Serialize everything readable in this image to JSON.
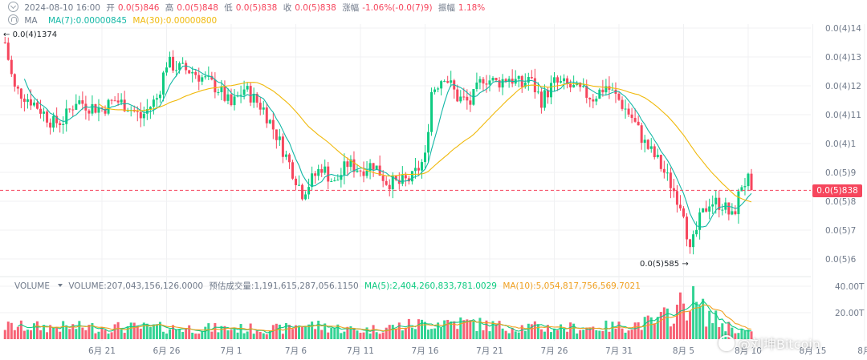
{
  "header": {
    "datetime": "2024-08-10 16:00",
    "open_label": "开",
    "open_value": "0.0(5)846",
    "high_label": "高",
    "high_value": "0.0(5)848",
    "low_label": "低",
    "low_value": "0.0(5)838",
    "close_label": "收",
    "close_value": "0.0(5)838",
    "change_label": "涨幅",
    "change_value": "-1.06%(-0.0(7)9)",
    "amplitude_label": "振幅",
    "amplitude_value": "1.18%"
  },
  "ma_row": {
    "label": "MA",
    "ma7": "MA(7):0.00000845",
    "ma30": "MA(30):0.00000800"
  },
  "volume_row": {
    "label": "VOLUME",
    "volume": "VOLUME:207,043,156,126.0000",
    "estimate": "预估成交量:1,191,615,287,056.1150",
    "ma5": "MA(5):2,404,260,833,781.0029",
    "ma10": "MA(10):5,054,817,756,569.7021"
  },
  "annotations": {
    "high": "0.0(4)1374",
    "low": "0.0(5)585"
  },
  "current_price": "0.0(5)838",
  "watermark": "@刘坤Bitcoin",
  "colors": {
    "up": "#0ecb81",
    "down": "#f6465d",
    "ma7": "#14b8a6",
    "ma30": "#f0b90b",
    "grid": "#f0f1f3"
  },
  "chart_data": {
    "type": "candlestick",
    "price_axis": {
      "ticks": [
        {
          "value": 1.4e-05,
          "label": "0.0(4)14"
        },
        {
          "value": 1.3e-05,
          "label": "0.0(4)13"
        },
        {
          "value": 1.2e-05,
          "label": "0.0(4)12"
        },
        {
          "value": 1.1e-05,
          "label": "0.0(4)11"
        },
        {
          "value": 1e-05,
          "label": "0.0(4)1"
        },
        {
          "value": 9e-06,
          "label": "0.0(5)9"
        },
        {
          "value": 8e-06,
          "label": "0.0(5)8"
        },
        {
          "value": 7e-06,
          "label": "0.0(5)7"
        },
        {
          "value": 6e-06,
          "label": "0.0(5)6"
        }
      ]
    },
    "volume_axis": {
      "ticks": [
        {
          "value": 40,
          "label": "40.00T"
        },
        {
          "value": 20,
          "label": "20.00T"
        }
      ]
    },
    "x_axis": {
      "ticks": [
        {
          "day": 0,
          "label": "6月 21"
        },
        {
          "day": 5,
          "label": "6月 26"
        },
        {
          "day": 10,
          "label": "7月 1"
        },
        {
          "day": 15,
          "label": "7月 6"
        },
        {
          "day": 20,
          "label": "7月 11"
        },
        {
          "day": 25,
          "label": "7月 16"
        },
        {
          "day": 30,
          "label": "7月 21"
        },
        {
          "day": 35,
          "label": "7月 26"
        },
        {
          "day": 40,
          "label": "7月 31"
        },
        {
          "day": 45,
          "label": "8月 5"
        },
        {
          "day": 50,
          "label": "8月 10"
        },
        {
          "day": 55,
          "label": "8月 15"
        },
        {
          "day": 59,
          "label": "8月"
        }
      ]
    },
    "last_close": 8.38e-06,
    "price_keypoints": [
      [
        -7.5,
        13.5
      ],
      [
        -6.8,
        11.9
      ],
      [
        -5.5,
        11.5
      ],
      [
        -4.8,
        11.2
      ],
      [
        -3.8,
        10.7
      ],
      [
        -3.0,
        10.8
      ],
      [
        -2.0,
        11.5
      ],
      [
        -1.0,
        11.3
      ],
      [
        0.0,
        11.2
      ],
      [
        1.0,
        11.5
      ],
      [
        2.0,
        11.3
      ],
      [
        3.0,
        10.9
      ],
      [
        4.3,
        11.6
      ],
      [
        5.0,
        12.8
      ],
      [
        6.0,
        12.6
      ],
      [
        7.0,
        12.5
      ],
      [
        8.0,
        12.2
      ],
      [
        9.0,
        11.9
      ],
      [
        10.0,
        11.3
      ],
      [
        11.0,
        11.9
      ],
      [
        12.5,
        11.2
      ],
      [
        13.5,
        10.3
      ],
      [
        14.5,
        9.3
      ],
      [
        15.5,
        8.3
      ],
      [
        16.5,
        8.9
      ],
      [
        17.0,
        9.2
      ],
      [
        18.0,
        8.6
      ],
      [
        19.0,
        9.3
      ],
      [
        20.0,
        9.1
      ],
      [
        21.0,
        9.3
      ],
      [
        22.0,
        8.7
      ],
      [
        23.0,
        8.6
      ],
      [
        24.0,
        8.8
      ],
      [
        25.0,
        9.5
      ],
      [
        25.5,
        11.8
      ],
      [
        26.5,
        12.4
      ],
      [
        27.5,
        11.6
      ],
      [
        28.5,
        11.4
      ],
      [
        29.5,
        12.3
      ],
      [
        30.5,
        12.1
      ],
      [
        31.5,
        12.3
      ],
      [
        32.5,
        12.0
      ],
      [
        33.0,
        12.3
      ],
      [
        34.0,
        11.5
      ],
      [
        35.0,
        12.1
      ],
      [
        36.0,
        12.0
      ],
      [
        37.0,
        11.8
      ],
      [
        38.0,
        11.6
      ],
      [
        39.0,
        12.0
      ],
      [
        40.0,
        11.5
      ],
      [
        41.0,
        10.9
      ],
      [
        42.0,
        10.0
      ],
      [
        43.0,
        9.4
      ],
      [
        44.0,
        8.6
      ],
      [
        45.0,
        7.7
      ],
      [
        45.5,
        6.2
      ],
      [
        46.2,
        7.3
      ],
      [
        47.0,
        8.0
      ],
      [
        48.0,
        7.9
      ],
      [
        48.8,
        7.4
      ],
      [
        49.5,
        8.6
      ],
      [
        50.0,
        8.7
      ],
      [
        50.4,
        8.38
      ]
    ],
    "volume_keypoints": [
      [
        -7.5,
        10
      ],
      [
        5.0,
        9
      ],
      [
        14.0,
        8
      ],
      [
        15.5,
        12
      ],
      [
        20.0,
        7
      ],
      [
        25.5,
        13
      ],
      [
        27.0,
        14
      ],
      [
        31.0,
        10
      ],
      [
        36.0,
        9
      ],
      [
        40.0,
        10
      ],
      [
        43.0,
        14
      ],
      [
        44.5,
        24
      ],
      [
        45.5,
        32
      ],
      [
        46.5,
        22
      ],
      [
        48.0,
        12
      ],
      [
        50.4,
        4
      ]
    ]
  }
}
